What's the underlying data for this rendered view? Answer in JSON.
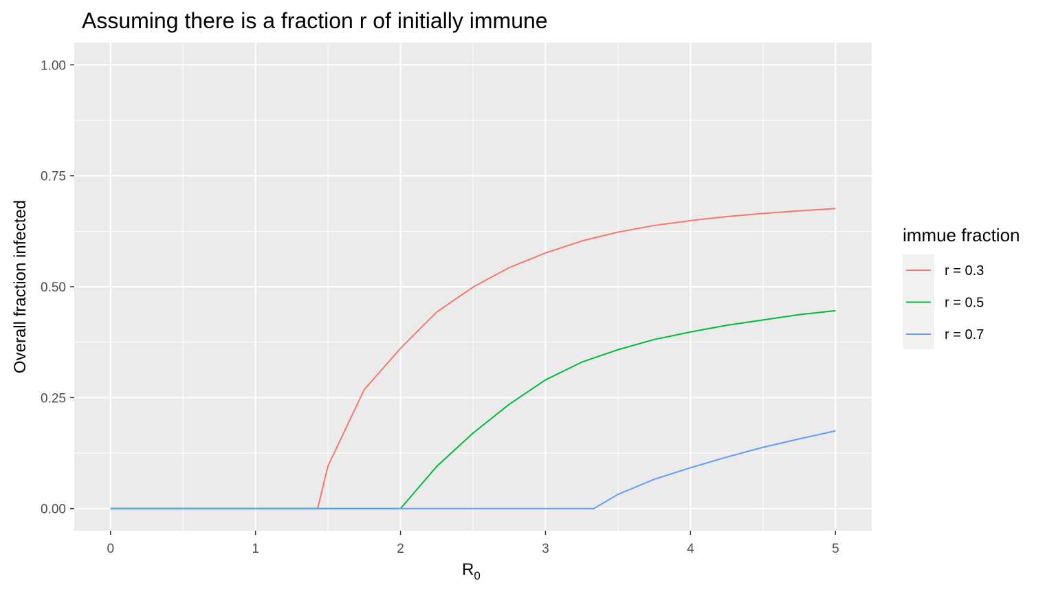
{
  "chart_data": {
    "type": "line",
    "title": "Assuming there is a fraction r of initially immune",
    "xlabel_main": "R",
    "xlabel_sub": "0",
    "ylabel": "Overall fraction infected",
    "xlim": [
      -0.25,
      5.25
    ],
    "ylim": [
      -0.05,
      1.05
    ],
    "x_ticks": [
      0,
      1,
      2,
      3,
      4,
      5
    ],
    "x_tick_labels": [
      "0",
      "1",
      "2",
      "3",
      "4",
      "5"
    ],
    "y_ticks": [
      0,
      0.25,
      0.5,
      0.75,
      1.0
    ],
    "y_tick_labels": [
      "0.00",
      "0.25",
      "0.50",
      "0.75",
      "1.00"
    ],
    "grid": true,
    "legend": {
      "title": "immue fraction",
      "position": "right"
    },
    "series": [
      {
        "name": "r = 0.3",
        "color": "#F8766D",
        "x": [
          0,
          1.4286,
          1.5,
          1.75,
          2.0,
          2.25,
          2.5,
          2.75,
          3.0,
          3.25,
          3.5,
          3.75,
          4.0,
          4.25,
          4.5,
          4.75,
          5.0
        ],
        "y": [
          0,
          0,
          0.096,
          0.268,
          0.361,
          0.443,
          0.499,
          0.543,
          0.576,
          0.603,
          0.623,
          0.638,
          0.649,
          0.658,
          0.665,
          0.671,
          0.676
        ]
      },
      {
        "name": "r = 0.5",
        "color": "#00BA38",
        "x": [
          0,
          2.0,
          2.25,
          2.5,
          2.75,
          3.0,
          3.25,
          3.5,
          3.75,
          4.0,
          4.25,
          4.5,
          4.75,
          5.0
        ],
        "y": [
          0,
          0,
          0.095,
          0.17,
          0.235,
          0.29,
          0.33,
          0.358,
          0.381,
          0.398,
          0.413,
          0.425,
          0.437,
          0.446
        ]
      },
      {
        "name": "r = 0.7",
        "color": "#619CFF",
        "x": [
          0,
          3.333,
          3.5,
          3.75,
          4.0,
          4.25,
          4.5,
          4.75,
          5.0
        ],
        "y": [
          0,
          0,
          0.032,
          0.066,
          0.092,
          0.116,
          0.138,
          0.157,
          0.175
        ]
      }
    ]
  }
}
